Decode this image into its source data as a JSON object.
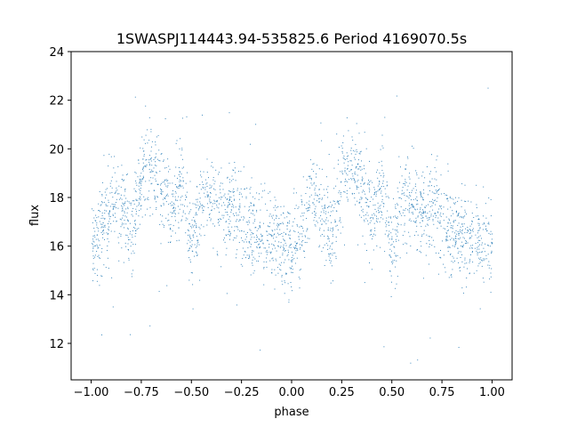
{
  "chart_data": {
    "type": "scatter",
    "title": "1SWASPJ114443.94-535825.6 Period 4169070.5s",
    "xlabel": "phase",
    "ylabel": "flux",
    "xlim": [
      -1.1,
      1.1
    ],
    "ylim": [
      10.5,
      24.0
    ],
    "xticks": [
      -1.0,
      -0.75,
      -0.5,
      -0.25,
      0.0,
      0.25,
      0.5,
      0.75,
      1.0
    ],
    "xtick_labels": [
      "−1.00",
      "−0.75",
      "−0.50",
      "−0.25",
      "0.00",
      "0.25",
      "0.50",
      "0.75",
      "1.00"
    ],
    "yticks": [
      12,
      14,
      16,
      18,
      20,
      22,
      24
    ],
    "ytick_labels": [
      "12",
      "14",
      "16",
      "18",
      "20",
      "22",
      "24"
    ],
    "grid": false,
    "marker_color": "#1f77b4",
    "series": [
      {
        "profile_phase": [
          0.0,
          0.05,
          0.1,
          0.15,
          0.2,
          0.25,
          0.3,
          0.35,
          0.4,
          0.45,
          0.5,
          0.55,
          0.6,
          0.65,
          0.7,
          0.75,
          0.8,
          0.85,
          0.9,
          0.95,
          1.0
        ],
        "profile_flux": [
          16.0,
          16.8,
          18.0,
          17.5,
          16.2,
          19.0,
          19.3,
          18.4,
          17.4,
          18.6,
          15.8,
          18.0,
          17.8,
          17.3,
          17.6,
          17.0,
          16.6,
          16.3,
          16.6,
          16.0,
          16.0
        ],
        "scatter_sigma": 0.9
      }
    ]
  }
}
